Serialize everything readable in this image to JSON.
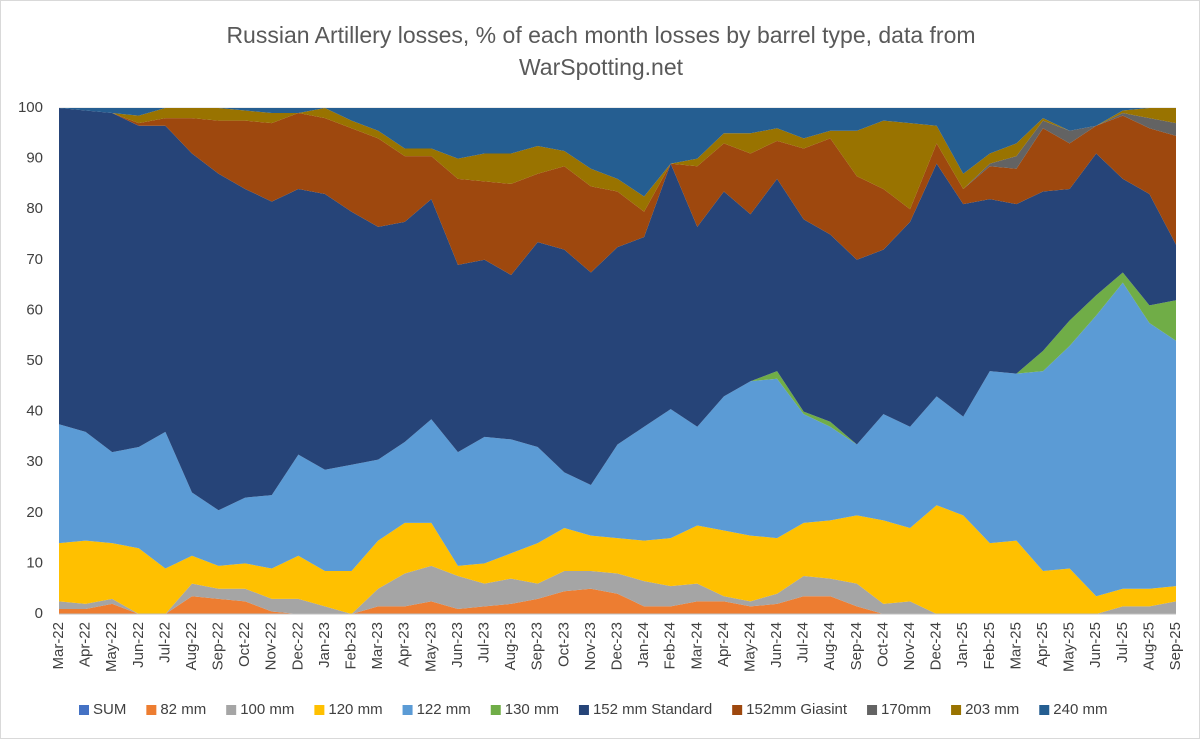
{
  "chart_data": {
    "type": "stacked-area",
    "title": "Russian Artillery losses, % of each month losses by barrel type, data from WarSpotting.net",
    "categories": [
      "Mar-22",
      "Apr-22",
      "May-22",
      "Jun-22",
      "Jul-22",
      "Aug-22",
      "Sep-22",
      "Oct-22",
      "Nov-22",
      "Dec-22",
      "Jan-23",
      "Feb-23",
      "Mar-23",
      "Apr-23",
      "May-23",
      "Jun-23",
      "Jul-23",
      "Aug-23",
      "Sep-23",
      "Oct-23",
      "Nov-23",
      "Dec-23",
      "Jan-24",
      "Feb-24",
      "Mar-24",
      "Apr-24",
      "May-24",
      "Jun-24",
      "Jul-24",
      "Aug-24",
      "Sep-24",
      "Oct-24",
      "Nov-24",
      "Dec-24",
      "Jan-25",
      "Feb-25",
      "Mar-25",
      "Apr-25",
      "May-25",
      "Jun-25",
      "Jul-25",
      "Aug-25",
      "Sep-25"
    ],
    "ylim": [
      0,
      100
    ],
    "yticks": [
      0,
      10,
      20,
      30,
      40,
      50,
      60,
      70,
      80,
      90,
      100
    ],
    "grid": true,
    "legend": "bottom",
    "series": [
      {
        "name": "SUM",
        "color": "#4472c4",
        "values": [
          0,
          0,
          0,
          0,
          0,
          0,
          0,
          0,
          0,
          0,
          0,
          0,
          0,
          0,
          0,
          0,
          0,
          0,
          0,
          0,
          0,
          0,
          0,
          0,
          0,
          0,
          0,
          0,
          0,
          0,
          0,
          0,
          0,
          0,
          0,
          0,
          0,
          0,
          0,
          0,
          0,
          0,
          0
        ]
      },
      {
        "name": "82 mm",
        "color": "#ed7d31",
        "values": [
          1,
          1,
          2,
          0,
          0,
          3.5,
          3,
          2.5,
          0.5,
          0,
          0,
          0,
          1.5,
          1.5,
          2.5,
          1,
          1.5,
          2,
          3,
          4.5,
          5,
          4,
          1.5,
          1.5,
          2.5,
          2.5,
          1.5,
          2,
          3.5,
          3.5,
          1.5,
          0,
          0,
          0,
          0,
          0,
          0,
          0,
          0,
          0,
          0,
          0,
          0
        ]
      },
      {
        "name": "100 mm",
        "color": "#a5a5a5",
        "values": [
          1.5,
          1,
          1,
          0,
          0,
          2.5,
          2,
          2.5,
          2.5,
          3,
          1.5,
          0,
          3.5,
          6.5,
          7,
          6.5,
          4.5,
          5,
          3,
          4,
          3.5,
          4,
          5,
          4,
          3.5,
          1,
          1,
          2,
          4,
          3.5,
          4.5,
          2,
          2.5,
          0,
          0,
          0,
          0,
          0,
          0,
          0,
          1.5,
          1.5,
          2.5
        ]
      },
      {
        "name": "120 mm",
        "color": "#ffc000",
        "values": [
          11.5,
          12.5,
          11,
          13,
          9,
          5.5,
          4.5,
          5,
          6,
          8.5,
          7,
          8.5,
          9.5,
          10,
          8.5,
          2,
          4,
          5,
          8,
          8.5,
          7,
          7,
          8,
          9.5,
          11.5,
          13,
          13,
          11,
          10.5,
          11.5,
          13.5,
          16.5,
          14.5,
          21.5,
          19.5,
          14,
          14.5,
          8.5,
          9,
          3.5,
          3.5,
          3.5,
          3
        ]
      },
      {
        "name": "122 mm",
        "color": "#5b9bd5",
        "values": [
          23.5,
          21.5,
          18,
          20,
          27,
          12.5,
          11,
          13,
          14.5,
          20,
          20,
          21,
          16,
          16,
          20.5,
          22.5,
          25,
          22.5,
          19,
          11,
          10,
          18.5,
          22.5,
          25.5,
          19.5,
          26.5,
          30.5,
          31.5,
          21.5,
          18.5,
          14,
          21,
          20,
          21.5,
          19.5,
          34,
          33,
          39.5,
          44,
          55.5,
          60.5,
          52.5,
          48.5
        ]
      },
      {
        "name": "130 mm",
        "color": "#70ad47",
        "values": [
          0,
          0,
          0,
          0,
          0,
          0,
          0,
          0,
          0,
          0,
          0,
          0,
          0,
          0,
          0,
          0,
          0,
          0,
          0,
          0,
          0,
          0,
          0,
          0,
          0,
          0,
          0,
          1.5,
          0.5,
          1,
          0,
          0,
          0,
          0,
          0,
          0,
          0,
          4,
          5,
          4,
          2,
          3.5,
          8
        ]
      },
      {
        "name": "152 mm Standard",
        "color": "#264478",
        "values": [
          62.5,
          63.5,
          67,
          63.5,
          60.5,
          67,
          66.5,
          61,
          58,
          52.5,
          54.5,
          50,
          46,
          43.5,
          43.5,
          37,
          35,
          32.5,
          40.5,
          44,
          42,
          39,
          37.5,
          48.5,
          39.5,
          40.5,
          33,
          38,
          38,
          37,
          36.5,
          32.5,
          40.5,
          46,
          42,
          34,
          33.5,
          31.5,
          26,
          28,
          18.5,
          22,
          11
        ]
      },
      {
        "name": "152mm Giasint",
        "color": "#9e480e",
        "values": [
          0,
          0,
          0,
          0.5,
          1.5,
          7,
          10.5,
          13.5,
          15.5,
          15,
          15,
          16.5,
          17.5,
          13,
          8.5,
          17,
          15.5,
          18,
          13.5,
          16.5,
          17,
          11,
          5,
          0,
          12,
          9.5,
          12,
          7.5,
          14,
          19,
          16.5,
          12,
          2.5,
          4,
          3,
          6.5,
          7,
          12.5,
          9,
          5.5,
          12.5,
          13,
          21.5
        ]
      },
      {
        "name": "170mm",
        "color": "#636363",
        "values": [
          0,
          0,
          0,
          0,
          0,
          0,
          0,
          0,
          0,
          0,
          0,
          0,
          0,
          0,
          0,
          0,
          0,
          0,
          0,
          0,
          0,
          0,
          0,
          0,
          0,
          0,
          0,
          0,
          0,
          0,
          0,
          0,
          0,
          0,
          0,
          0.5,
          2.5,
          1.5,
          2.5,
          0,
          0.5,
          2,
          2.5
        ]
      },
      {
        "name": "203 mm",
        "color": "#997300",
        "values": [
          0,
          0,
          0,
          1.5,
          2,
          2,
          2.5,
          2,
          2,
          0,
          2,
          1.5,
          1.5,
          1.5,
          1.5,
          4,
          5.5,
          6,
          5.5,
          3,
          3.5,
          2.5,
          3,
          0,
          1.5,
          2,
          4,
          2.5,
          2,
          1.5,
          9,
          13.5,
          17,
          3.5,
          3,
          2,
          2.5,
          0.5,
          0,
          0,
          0.5,
          2,
          3
        ]
      },
      {
        "name": "240 mm",
        "color": "#255e91",
        "values": [
          0,
          0.5,
          1,
          1.5,
          0,
          0,
          0,
          0.5,
          1,
          1,
          0,
          2.5,
          4.5,
          8,
          8,
          10,
          9,
          9,
          7.5,
          8.5,
          12,
          14,
          17.5,
          11,
          10,
          5,
          5,
          4,
          6,
          4.5,
          4.5,
          2.5,
          3,
          3.5,
          13,
          9,
          7,
          2,
          4.5,
          3.5,
          0.5,
          0,
          0
        ]
      }
    ]
  }
}
